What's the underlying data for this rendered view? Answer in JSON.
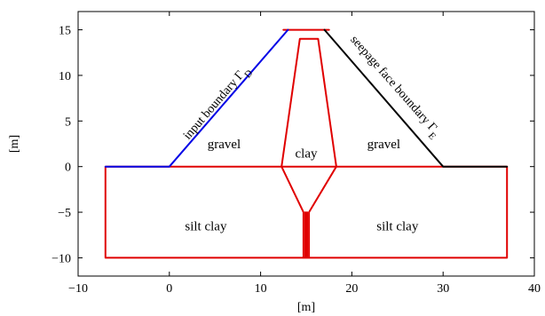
{
  "chart_data": {
    "type": "diagram",
    "xlabel": "[m]",
    "ylabel": "[m]",
    "xlim": [
      -10,
      40
    ],
    "ylim": [
      -12,
      17
    ],
    "xticks": [
      -10,
      0,
      10,
      20,
      30,
      40
    ],
    "yticks": [
      -10,
      -5,
      0,
      5,
      10,
      15
    ],
    "colors": {
      "red": "#e00000",
      "blue": "#0000e6",
      "black": "#000000"
    },
    "polylines": [
      {
        "id": "silt-rect",
        "color": "red",
        "points": [
          [
            -7,
            0
          ],
          [
            -7,
            -10
          ],
          [
            37,
            -10
          ],
          [
            37,
            0
          ],
          [
            -7,
            0
          ]
        ]
      },
      {
        "id": "dam-outline",
        "color": "red",
        "points": [
          [
            12.5,
            15
          ],
          [
            17.5,
            15
          ]
        ]
      },
      {
        "id": "core-lower",
        "color": "red",
        "points": [
          [
            12.3,
            0
          ],
          [
            14.7,
            -5
          ],
          [
            14.7,
            -10
          ]
        ]
      },
      {
        "id": "core-lower-right",
        "color": "red",
        "points": [
          [
            18.3,
            0
          ],
          [
            15.3,
            -5
          ],
          [
            15.3,
            -10
          ]
        ]
      },
      {
        "id": "core-inner-left",
        "color": "red",
        "points": [
          [
            14.9,
            -5
          ],
          [
            14.9,
            -10
          ]
        ]
      },
      {
        "id": "core-inner-right",
        "color": "red",
        "points": [
          [
            15.1,
            -5
          ],
          [
            15.1,
            -10
          ]
        ]
      },
      {
        "id": "core-upper",
        "color": "red",
        "points": [
          [
            12.3,
            0
          ],
          [
            14.3,
            14
          ],
          [
            16.3,
            14
          ],
          [
            18.3,
            0
          ]
        ]
      },
      {
        "id": "input-boundary",
        "color": "blue",
        "points": [
          [
            -7,
            0
          ],
          [
            0,
            0
          ],
          [
            13,
            15
          ]
        ]
      },
      {
        "id": "seepage-boundary",
        "color": "black",
        "points": [
          [
            17,
            15
          ],
          [
            30,
            0
          ],
          [
            37,
            0
          ]
        ]
      }
    ],
    "region_labels": [
      {
        "text": "gravel",
        "x": 6,
        "y": 2
      },
      {
        "text": "clay",
        "x": 15,
        "y": 1
      },
      {
        "text": "gravel",
        "x": 23.5,
        "y": 2
      },
      {
        "text": "silt clay",
        "x": 4,
        "y": -7
      },
      {
        "text": "silt clay",
        "x": 25,
        "y": -7
      }
    ],
    "boundary_labels": [
      {
        "text": "input boundary Γ_D",
        "x": 2.1,
        "y": 2.9
      },
      {
        "text": "seepage face boundary Γ_E",
        "x": 19.8,
        "y": 13.9
      }
    ]
  }
}
